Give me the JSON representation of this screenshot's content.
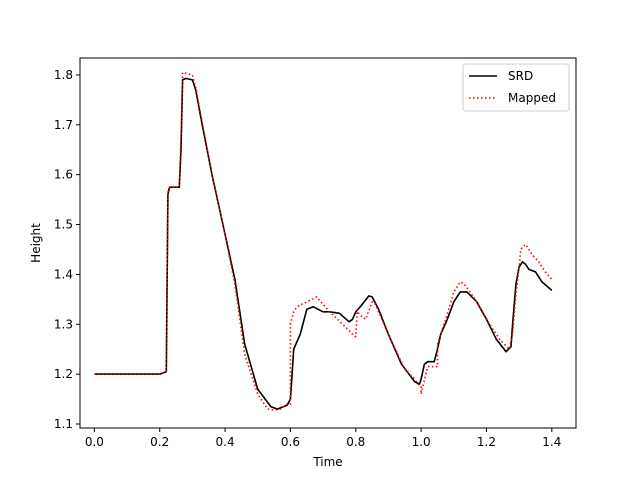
{
  "chart_data": {
    "type": "line",
    "xlabel": "Time",
    "ylabel": "Height",
    "xlim": [
      -0.044,
      1.474
    ],
    "ylim": [
      1.092,
      1.834
    ],
    "xticks": [
      "0.0",
      "0.2",
      "0.4",
      "0.6",
      "0.8",
      "1.0",
      "1.2",
      "1.4"
    ],
    "yticks": [
      "1.1",
      "1.2",
      "1.3",
      "1.4",
      "1.5",
      "1.6",
      "1.7",
      "1.8"
    ],
    "legend_position": "top-right",
    "series": [
      {
        "name": "SRD",
        "color": "#000000",
        "style": "solid",
        "x": [
          0,
          0.1,
          0.2,
          0.22,
          0.225,
          0.23,
          0.26,
          0.265,
          0.27,
          0.28,
          0.3,
          0.31,
          0.33,
          0.36,
          0.4,
          0.43,
          0.46,
          0.5,
          0.54,
          0.56,
          0.59,
          0.6,
          0.605,
          0.61,
          0.63,
          0.65,
          0.67,
          0.7,
          0.72,
          0.75,
          0.78,
          0.79,
          0.8,
          0.82,
          0.84,
          0.85,
          0.87,
          0.9,
          0.94,
          0.98,
          0.995,
          1.0,
          1.01,
          1.02,
          1.04,
          1.05,
          1.06,
          1.08,
          1.1,
          1.12,
          1.14,
          1.17,
          1.2,
          1.23,
          1.26,
          1.275,
          1.28,
          1.29,
          1.3,
          1.31,
          1.32,
          1.33,
          1.35,
          1.37,
          1.4
        ],
        "y": [
          1.2,
          1.2,
          1.2,
          1.205,
          1.56,
          1.575,
          1.575,
          1.65,
          1.79,
          1.793,
          1.79,
          1.77,
          1.7,
          1.6,
          1.48,
          1.39,
          1.26,
          1.17,
          1.135,
          1.13,
          1.138,
          1.15,
          1.2,
          1.25,
          1.28,
          1.33,
          1.335,
          1.325,
          1.325,
          1.322,
          1.305,
          1.31,
          1.325,
          1.34,
          1.357,
          1.355,
          1.33,
          1.28,
          1.22,
          1.185,
          1.18,
          1.19,
          1.22,
          1.225,
          1.225,
          1.25,
          1.28,
          1.31,
          1.345,
          1.365,
          1.365,
          1.345,
          1.31,
          1.27,
          1.245,
          1.255,
          1.3,
          1.38,
          1.415,
          1.425,
          1.42,
          1.41,
          1.405,
          1.385,
          1.368
        ]
      },
      {
        "name": "Mapped",
        "color": "#ff0000",
        "style": "dotted",
        "x": [
          0,
          0.1,
          0.2,
          0.22,
          0.225,
          0.23,
          0.26,
          0.265,
          0.27,
          0.3,
          0.31,
          0.33,
          0.36,
          0.4,
          0.43,
          0.46,
          0.5,
          0.53,
          0.55,
          0.57,
          0.59,
          0.6,
          0.6,
          0.61,
          0.62,
          0.65,
          0.68,
          0.72,
          0.76,
          0.79,
          0.8,
          0.805,
          0.81,
          0.83,
          0.85,
          0.86,
          0.9,
          0.95,
          0.98,
          0.99,
          1.0,
          1.0,
          1.02,
          1.05,
          1.05,
          1.06,
          1.08,
          1.1,
          1.12,
          1.13,
          1.15,
          1.18,
          1.21,
          1.24,
          1.27,
          1.28,
          1.29,
          1.3,
          1.305,
          1.31,
          1.32,
          1.34,
          1.36,
          1.38,
          1.4
        ],
        "y": [
          1.2,
          1.2,
          1.2,
          1.205,
          1.565,
          1.575,
          1.575,
          1.675,
          1.805,
          1.8,
          1.775,
          1.705,
          1.6,
          1.48,
          1.38,
          1.24,
          1.16,
          1.13,
          1.128,
          1.13,
          1.14,
          1.14,
          1.3,
          1.325,
          1.335,
          1.345,
          1.355,
          1.325,
          1.3,
          1.28,
          1.275,
          1.33,
          1.32,
          1.31,
          1.345,
          1.34,
          1.28,
          1.21,
          1.19,
          1.18,
          1.175,
          1.16,
          1.215,
          1.215,
          1.26,
          1.28,
          1.32,
          1.365,
          1.385,
          1.382,
          1.365,
          1.335,
          1.3,
          1.27,
          1.25,
          1.28,
          1.36,
          1.415,
          1.45,
          1.455,
          1.46,
          1.44,
          1.425,
          1.405,
          1.39
        ]
      }
    ]
  }
}
